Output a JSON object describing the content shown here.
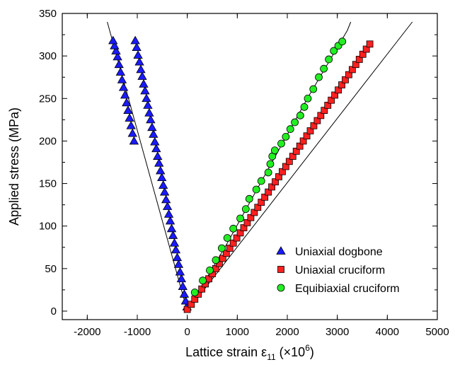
{
  "chart_data": {
    "type": "scatter",
    "xlabel_main": "Lattice strain ε",
    "xlabel_sub": "11",
    "xlabel_unit_open": " (×10",
    "xlabel_unit_sup": "6",
    "xlabel_unit_close": ")",
    "ylabel": "Applied stress (MPa)",
    "xlim": [
      -2500,
      5000
    ],
    "ylim": [
      -10,
      350
    ],
    "xticks": [
      -2000,
      -1000,
      0,
      1000,
      2000,
      3000,
      4000,
      5000
    ],
    "yticks": [
      0,
      50,
      100,
      150,
      200,
      250,
      300,
      350
    ],
    "xtick_labels": [
      "-2000",
      "-1000",
      "0",
      "1000",
      "2000",
      "3000",
      "4000",
      "5000"
    ],
    "ytick_labels": [
      "0",
      "50",
      "100",
      "150",
      "200",
      "250",
      "300",
      "350"
    ],
    "grid": false,
    "legend_position": "bottom-right",
    "series": [
      {
        "name": "Uniaxial dogbone",
        "marker": "triangle",
        "color": "#1a1aff",
        "points": [
          [
            -5,
            5
          ],
          [
            -33,
            12
          ],
          [
            -60,
            20
          ],
          [
            -90,
            29
          ],
          [
            -117,
            38
          ],
          [
            -145,
            46
          ],
          [
            -173,
            55
          ],
          [
            -201,
            63
          ],
          [
            -229,
            72
          ],
          [
            -257,
            80
          ],
          [
            -285,
            89
          ],
          [
            -313,
            97
          ],
          [
            -341,
            106
          ],
          [
            -369,
            114
          ],
          [
            -397,
            123
          ],
          [
            -425,
            131
          ],
          [
            -453,
            140
          ],
          [
            -481,
            148
          ],
          [
            -509,
            157
          ],
          [
            -537,
            165
          ],
          [
            -565,
            174
          ],
          [
            -593,
            182
          ],
          [
            -621,
            191
          ],
          [
            -649,
            199
          ],
          [
            -677,
            208
          ],
          [
            -705,
            216
          ],
          [
            -733,
            225
          ],
          [
            -761,
            233
          ],
          [
            -789,
            242
          ],
          [
            -817,
            250
          ],
          [
            -845,
            259
          ],
          [
            -873,
            267
          ],
          [
            -901,
            276
          ],
          [
            -929,
            284
          ],
          [
            -957,
            293
          ],
          [
            -985,
            301
          ],
          [
            -1013,
            310
          ],
          [
            -1041,
            318
          ],
          [
            -1065,
            200
          ],
          [
            -1095,
            209
          ],
          [
            -1125,
            218
          ],
          [
            -1155,
            227
          ],
          [
            -1185,
            236
          ],
          [
            -1215,
            245
          ],
          [
            -1245,
            254
          ],
          [
            -1275,
            263
          ],
          [
            -1305,
            272
          ],
          [
            -1335,
            281
          ],
          [
            -1365,
            290
          ],
          [
            -1395,
            299
          ],
          [
            -1425,
            306
          ],
          [
            -1455,
            312
          ],
          [
            -1485,
            318
          ]
        ]
      },
      {
        "name": "Uniaxial cruciform",
        "marker": "square",
        "color": "#ff2020",
        "points": [
          [
            0,
            2
          ],
          [
            80,
            8
          ],
          [
            150,
            14
          ],
          [
            220,
            20
          ],
          [
            290,
            26
          ],
          [
            360,
            32
          ],
          [
            430,
            38
          ],
          [
            500,
            44
          ],
          [
            570,
            50
          ],
          [
            640,
            56
          ],
          [
            710,
            62
          ],
          [
            780,
            68
          ],
          [
            850,
            74
          ],
          [
            920,
            80
          ],
          [
            990,
            86
          ],
          [
            1060,
            92
          ],
          [
            1130,
            98
          ],
          [
            1200,
            104
          ],
          [
            1270,
            110
          ],
          [
            1340,
            116
          ],
          [
            1410,
            122
          ],
          [
            1480,
            128
          ],
          [
            1550,
            134
          ],
          [
            1620,
            140
          ],
          [
            1690,
            146
          ],
          [
            1760,
            152
          ],
          [
            1830,
            158
          ],
          [
            1900,
            164
          ],
          [
            1970,
            170
          ],
          [
            2040,
            176
          ],
          [
            2110,
            182
          ],
          [
            2180,
            188
          ],
          [
            2250,
            194
          ],
          [
            2320,
            200
          ],
          [
            2390,
            206
          ],
          [
            2460,
            212
          ],
          [
            2530,
            218
          ],
          [
            2600,
            224
          ],
          [
            2670,
            230
          ],
          [
            2740,
            236
          ],
          [
            2810,
            242
          ],
          [
            2880,
            248
          ],
          [
            2950,
            254
          ],
          [
            3020,
            260
          ],
          [
            3090,
            266
          ],
          [
            3160,
            272
          ],
          [
            3230,
            278
          ],
          [
            3300,
            284
          ],
          [
            3370,
            290
          ],
          [
            3440,
            296
          ],
          [
            3510,
            302
          ],
          [
            3580,
            308
          ],
          [
            3650,
            314
          ]
        ]
      },
      {
        "name": "Equibiaxial cruciform",
        "marker": "circle",
        "color": "#22ee22",
        "points": [
          [
            150,
            22
          ],
          [
            310,
            36
          ],
          [
            450,
            48
          ],
          [
            570,
            60
          ],
          [
            690,
            74
          ],
          [
            800,
            86
          ],
          [
            920,
            97
          ],
          [
            1060,
            109
          ],
          [
            1170,
            120
          ],
          [
            1240,
            132
          ],
          [
            1380,
            143
          ],
          [
            1480,
            153
          ],
          [
            1620,
            163
          ],
          [
            1660,
            173
          ],
          [
            1700,
            182
          ],
          [
            1750,
            189
          ],
          [
            1880,
            197
          ],
          [
            1970,
            205
          ],
          [
            2060,
            214
          ],
          [
            2150,
            222
          ],
          [
            2260,
            230
          ],
          [
            2340,
            240
          ],
          [
            2410,
            250
          ],
          [
            2520,
            261
          ],
          [
            2630,
            275
          ],
          [
            2730,
            285
          ],
          [
            2830,
            296
          ],
          [
            2930,
            306
          ],
          [
            3020,
            312
          ],
          [
            3100,
            317
          ]
        ]
      }
    ],
    "fit_lines": [
      {
        "series": "Uniaxial dogbone",
        "points": [
          [
            0,
            0
          ],
          [
            -1600,
            340
          ]
        ]
      },
      {
        "series": "Uniaxial cruciform",
        "points": [
          [
            0,
            0
          ],
          [
            4500,
            340
          ]
        ]
      },
      {
        "series": "Equibiaxial cruciform",
        "points": [
          [
            0,
            0
          ],
          [
            800,
            80
          ],
          [
            1600,
            165
          ],
          [
            2400,
            250
          ],
          [
            3200,
            330
          ],
          [
            3270,
            340
          ]
        ]
      }
    ]
  }
}
